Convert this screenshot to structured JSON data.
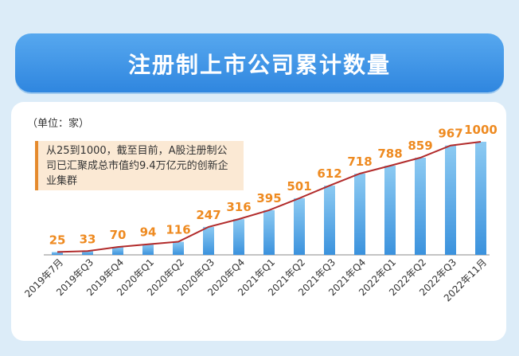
{
  "header": {
    "title": "注册制上市公司累计数量"
  },
  "unit_label": "（单位：家）",
  "note": "从25到1000，截至目前，A股注册制公司已汇聚成总市值约9.4万亿元的创新企业集群",
  "chart_data": {
    "type": "bar",
    "title": "注册制上市公司累计数量",
    "xlabel": "",
    "ylabel": "",
    "categories": [
      "2019年7月",
      "2019年Q3",
      "2019年Q4",
      "2020年Q1",
      "2020年Q2",
      "2020年Q3",
      "2020年Q4",
      "2021年Q1",
      "2021年Q2",
      "2021年Q3",
      "2021年Q4",
      "2022年Q1",
      "2022年Q2",
      "2022年Q3",
      "2022年11月"
    ],
    "values": [
      25,
      33,
      70,
      94,
      116,
      247,
      316,
      395,
      501,
      612,
      718,
      788,
      859,
      967,
      1000
    ],
    "overlay_line": "trend line through the bar tops",
    "ylim": [
      0,
      1000
    ],
    "grid": false,
    "legend": "none",
    "colors": {
      "bar_top": "#8ccaf2",
      "bar_bottom": "#3b92dd",
      "line": "#b22b2b",
      "label": "#ee8a20"
    }
  }
}
